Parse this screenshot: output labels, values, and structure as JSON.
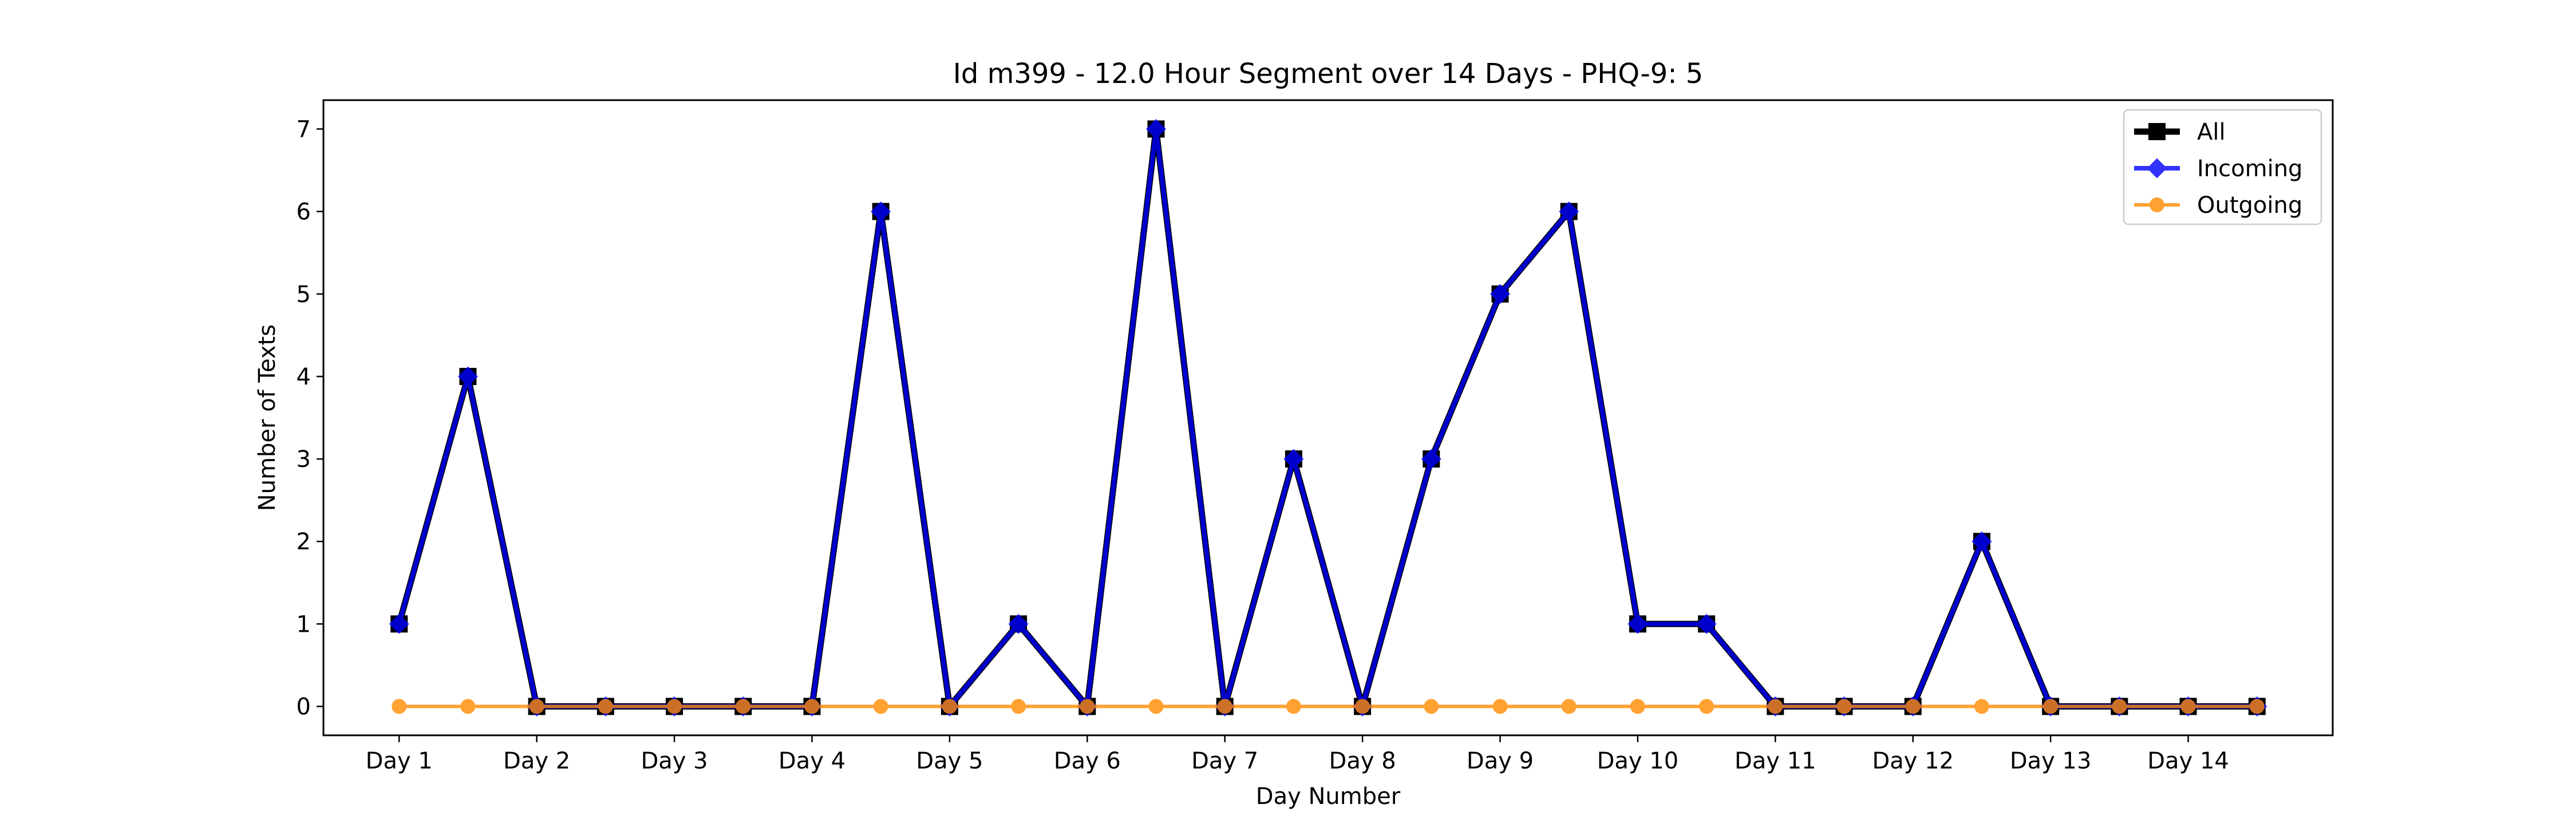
{
  "chart_data": {
    "type": "line",
    "title": "Id m399 - 12.0 Hour Segment over 14 Days - PHQ-9: 5",
    "xlabel": "Day Number",
    "ylabel": "Number of Texts",
    "x_tick_labels": [
      "Day 1",
      "Day 2",
      "Day 3",
      "Day 4",
      "Day 5",
      "Day 6",
      "Day 7",
      "Day 8",
      "Day 9",
      "Day 10",
      "Day 11",
      "Day 12",
      "Day 13",
      "Day 14"
    ],
    "x": [
      1,
      1.5,
      2,
      2.5,
      3,
      3.5,
      4,
      4.5,
      5,
      5.5,
      6,
      6.5,
      7,
      7.5,
      8,
      8.5,
      9,
      9.5,
      10,
      10.5,
      11,
      11.5,
      12,
      12.5,
      13,
      13.5,
      14,
      14.5
    ],
    "xlim": [
      0.45,
      15.05
    ],
    "ylim": [
      -0.35,
      7.35
    ],
    "y_ticks": [
      0,
      1,
      2,
      3,
      4,
      5,
      6,
      7
    ],
    "legend_position": "top-right",
    "series": [
      {
        "name": "All",
        "color": "#000000",
        "marker": "square",
        "values": [
          1,
          4,
          0,
          0,
          0,
          0,
          0,
          6,
          0,
          1,
          0,
          7,
          0,
          3,
          0,
          3,
          5,
          6,
          1,
          1,
          0,
          0,
          0,
          2,
          0,
          0,
          0,
          0
        ]
      },
      {
        "name": "Incoming",
        "color": "#0000ff",
        "marker": "diamond",
        "values": [
          1,
          4,
          0,
          0,
          0,
          0,
          0,
          6,
          0,
          1,
          0,
          7,
          0,
          3,
          0,
          3,
          5,
          6,
          1,
          1,
          0,
          0,
          0,
          2,
          0,
          0,
          0,
          0
        ]
      },
      {
        "name": "Outgoing",
        "color": "#ff8c00",
        "marker": "circle",
        "values": [
          0,
          0,
          0,
          0,
          0,
          0,
          0,
          0,
          0,
          0,
          0,
          0,
          0,
          0,
          0,
          0,
          0,
          0,
          0,
          0,
          0,
          0,
          0,
          0,
          0,
          0,
          0,
          0
        ]
      }
    ]
  }
}
